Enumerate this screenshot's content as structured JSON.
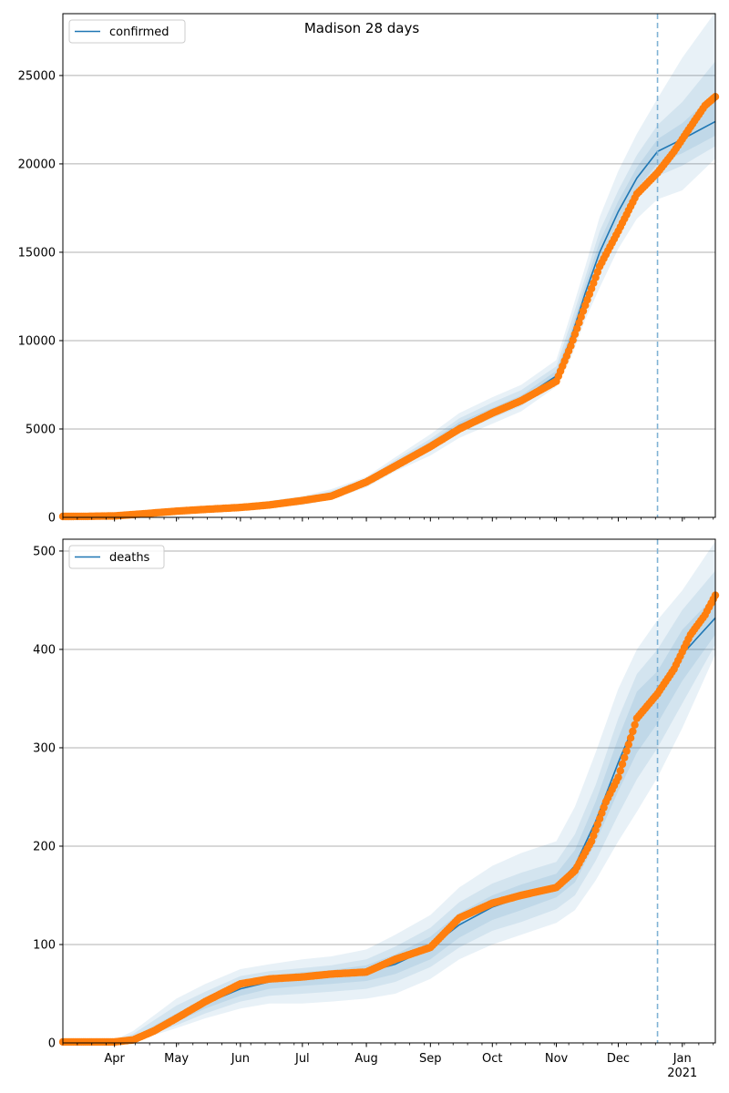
{
  "figure": {
    "title": "Madison 28 days"
  },
  "style": {
    "line_color": "#1f77b4",
    "obs_color": "#ff7f0e",
    "band_color": "#1f77b4",
    "vline_color": "#7fb2d5",
    "grid_color": "#b0b0b0"
  },
  "chart_data": [
    {
      "type": "line",
      "legend": "confirmed",
      "legend_position": "top-left",
      "grid": "horizontal",
      "ylim": [
        0,
        28500
      ],
      "yticks": [
        0,
        5000,
        10000,
        15000,
        20000,
        25000
      ],
      "xticks_shown": false,
      "forecast_start": "2020-12-20",
      "model": {
        "x": [
          "2020-03-07",
          "2020-04-01",
          "2020-05-01",
          "2020-06-01",
          "2020-07-01",
          "2020-07-15",
          "2020-08-01",
          "2020-08-15",
          "2020-09-01",
          "2020-09-15",
          "2020-10-01",
          "2020-10-15",
          "2020-11-01",
          "2020-11-08",
          "2020-11-15",
          "2020-11-22",
          "2020-12-01",
          "2020-12-10",
          "2020-12-20",
          "2021-01-01",
          "2021-01-17"
        ],
        "median": [
          0,
          80,
          330,
          580,
          950,
          1300,
          2000,
          3000,
          4100,
          5200,
          6000,
          6700,
          8000,
          10100,
          12700,
          15000,
          17300,
          19200,
          20700,
          21400,
          22400
        ],
        "band_95": [
          [
            0,
            0
          ],
          [
            0,
            150
          ],
          [
            250,
            450
          ],
          [
            450,
            700
          ],
          [
            700,
            1200
          ],
          [
            1000,
            1600
          ],
          [
            1700,
            2300
          ],
          [
            2600,
            3400
          ],
          [
            3500,
            4700
          ],
          [
            4500,
            5900
          ],
          [
            5300,
            6800
          ],
          [
            6000,
            7500
          ],
          [
            7400,
            8900
          ],
          [
            9000,
            11500
          ],
          [
            11200,
            14200
          ],
          [
            13000,
            17000
          ],
          [
            15200,
            19600
          ],
          [
            16900,
            21700
          ],
          [
            18000,
            23700
          ],
          [
            18500,
            26000
          ],
          [
            20300,
            28600
          ]
        ],
        "band_80": [
          [
            0,
            0
          ],
          [
            0,
            120
          ],
          [
            270,
            400
          ],
          [
            490,
            650
          ],
          [
            780,
            1100
          ],
          [
            1100,
            1500
          ],
          [
            1800,
            2200
          ],
          [
            2750,
            3250
          ],
          [
            3750,
            4450
          ],
          [
            4800,
            5600
          ],
          [
            5600,
            6500
          ],
          [
            6300,
            7200
          ],
          [
            7650,
            8550
          ],
          [
            9500,
            11000
          ],
          [
            11900,
            13600
          ],
          [
            14000,
            16200
          ],
          [
            16200,
            18500
          ],
          [
            18000,
            20500
          ],
          [
            19300,
            22200
          ],
          [
            19900,
            23500
          ],
          [
            21000,
            25800
          ]
        ],
        "band_50": [
          [
            0,
            0
          ],
          [
            20,
            100
          ],
          [
            290,
            370
          ],
          [
            520,
            630
          ],
          [
            850,
            1050
          ],
          [
            1180,
            1420
          ],
          [
            1880,
            2120
          ],
          [
            2850,
            3150
          ],
          [
            3900,
            4300
          ],
          [
            5000,
            5400
          ],
          [
            5800,
            6200
          ],
          [
            6500,
            6900
          ],
          [
            7800,
            8300
          ],
          [
            9750,
            10500
          ],
          [
            12250,
            13200
          ],
          [
            14500,
            15600
          ],
          [
            16800,
            17900
          ],
          [
            18600,
            19800
          ],
          [
            20000,
            21400
          ],
          [
            20600,
            22300
          ],
          [
            21600,
            24000
          ]
        ]
      },
      "observed": {
        "x": [
          "2020-03-07",
          "2020-03-20",
          "2020-04-01",
          "2020-04-15",
          "2020-05-01",
          "2020-05-15",
          "2020-06-01",
          "2020-06-15",
          "2020-07-01",
          "2020-07-15",
          "2020-08-01",
          "2020-08-15",
          "2020-09-01",
          "2020-09-15",
          "2020-10-01",
          "2020-10-15",
          "2020-11-01",
          "2020-11-08",
          "2020-11-15",
          "2020-11-22",
          "2020-12-01",
          "2020-12-10",
          "2020-12-20",
          "2020-12-28",
          "2021-01-05",
          "2021-01-12",
          "2021-01-17"
        ],
        "y": [
          50,
          60,
          80,
          200,
          350,
          450,
          560,
          700,
          950,
          1200,
          2000,
          2900,
          4000,
          5000,
          5900,
          6600,
          7700,
          9700,
          12000,
          14200,
          16200,
          18300,
          19500,
          20700,
          22100,
          23300,
          23800
        ]
      }
    },
    {
      "type": "line",
      "legend": "deaths",
      "legend_position": "top-left",
      "grid": "horizontal",
      "ylim": [
        0,
        512
      ],
      "yticks": [
        0,
        100,
        200,
        300,
        400,
        500
      ],
      "xticks": [
        "Apr",
        "May",
        "Jun",
        "Jul",
        "Aug",
        "Sep",
        "Oct",
        "Nov",
        "Dec",
        "Jan"
      ],
      "xtick_dates": [
        "2020-04-01",
        "2020-05-01",
        "2020-06-01",
        "2020-07-01",
        "2020-08-01",
        "2020-09-01",
        "2020-10-01",
        "2020-11-01",
        "2020-12-01",
        "2021-01-01"
      ],
      "year_label": "2021",
      "forecast_start": "2020-12-20",
      "model": {
        "x": [
          "2020-03-07",
          "2020-04-01",
          "2020-04-10",
          "2020-05-01",
          "2020-05-15",
          "2020-06-01",
          "2020-06-15",
          "2020-07-01",
          "2020-07-15",
          "2020-08-01",
          "2020-08-15",
          "2020-09-01",
          "2020-09-15",
          "2020-10-01",
          "2020-10-15",
          "2020-11-01",
          "2020-11-10",
          "2020-11-20",
          "2020-12-01",
          "2020-12-10",
          "2020-12-20",
          "2021-01-01",
          "2021-01-17"
        ],
        "median": [
          0,
          1,
          4,
          25,
          40,
          55,
          62,
          66,
          68,
          72,
          80,
          97,
          120,
          138,
          148,
          160,
          180,
          225,
          285,
          330,
          355,
          395,
          432
        ],
        "band_95": [
          [
            0,
            1
          ],
          [
            0,
            3
          ],
          [
            1,
            12
          ],
          [
            15,
            45
          ],
          [
            25,
            60
          ],
          [
            35,
            75
          ],
          [
            40,
            80
          ],
          [
            40,
            85
          ],
          [
            42,
            88
          ],
          [
            45,
            95
          ],
          [
            50,
            110
          ],
          [
            65,
            130
          ],
          [
            85,
            158
          ],
          [
            100,
            180
          ],
          [
            110,
            193
          ],
          [
            122,
            205
          ],
          [
            135,
            240
          ],
          [
            165,
            295
          ],
          [
            205,
            360
          ],
          [
            235,
            400
          ],
          [
            270,
            430
          ],
          [
            320,
            460
          ],
          [
            395,
            510
          ]
        ],
        "band_80": [
          [
            0,
            0
          ],
          [
            0,
            2
          ],
          [
            2,
            9
          ],
          [
            18,
            38
          ],
          [
            30,
            52
          ],
          [
            42,
            68
          ],
          [
            48,
            73
          ],
          [
            50,
            76
          ],
          [
            52,
            79
          ],
          [
            55,
            85
          ],
          [
            62,
            98
          ],
          [
            77,
            117
          ],
          [
            97,
            143
          ],
          [
            114,
            162
          ],
          [
            123,
            173
          ],
          [
            136,
            184
          ],
          [
            150,
            212
          ],
          [
            185,
            262
          ],
          [
            232,
            330
          ],
          [
            268,
            375
          ],
          [
            300,
            400
          ],
          [
            345,
            440
          ],
          [
            405,
            480
          ]
        ],
        "band_50": [
          [
            0,
            0
          ],
          [
            0,
            1
          ],
          [
            3,
            6
          ],
          [
            21,
            30
          ],
          [
            35,
            46
          ],
          [
            48,
            62
          ],
          [
            55,
            68
          ],
          [
            58,
            72
          ],
          [
            60,
            74
          ],
          [
            63,
            79
          ],
          [
            70,
            90
          ],
          [
            85,
            108
          ],
          [
            107,
            132
          ],
          [
            125,
            150
          ],
          [
            135,
            161
          ],
          [
            148,
            172
          ],
          [
            163,
            196
          ],
          [
            204,
            245
          ],
          [
            256,
            310
          ],
          [
            295,
            357
          ],
          [
            325,
            378
          ],
          [
            368,
            420
          ],
          [
            415,
            455
          ]
        ]
      },
      "observed": {
        "x": [
          "2020-03-07",
          "2020-03-20",
          "2020-04-01",
          "2020-04-10",
          "2020-04-20",
          "2020-05-01",
          "2020-05-15",
          "2020-06-01",
          "2020-06-15",
          "2020-07-01",
          "2020-07-15",
          "2020-08-01",
          "2020-08-15",
          "2020-09-01",
          "2020-09-15",
          "2020-10-01",
          "2020-10-15",
          "2020-11-01",
          "2020-11-10",
          "2020-11-18",
          "2020-11-25",
          "2020-12-01",
          "2020-12-10",
          "2020-12-20",
          "2020-12-28",
          "2021-01-05",
          "2021-01-12",
          "2021-01-17"
        ],
        "y": [
          1,
          1,
          1,
          3,
          12,
          25,
          42,
          60,
          65,
          67,
          70,
          72,
          85,
          97,
          127,
          142,
          150,
          158,
          175,
          205,
          245,
          270,
          330,
          355,
          380,
          415,
          435,
          455
        ]
      }
    }
  ]
}
